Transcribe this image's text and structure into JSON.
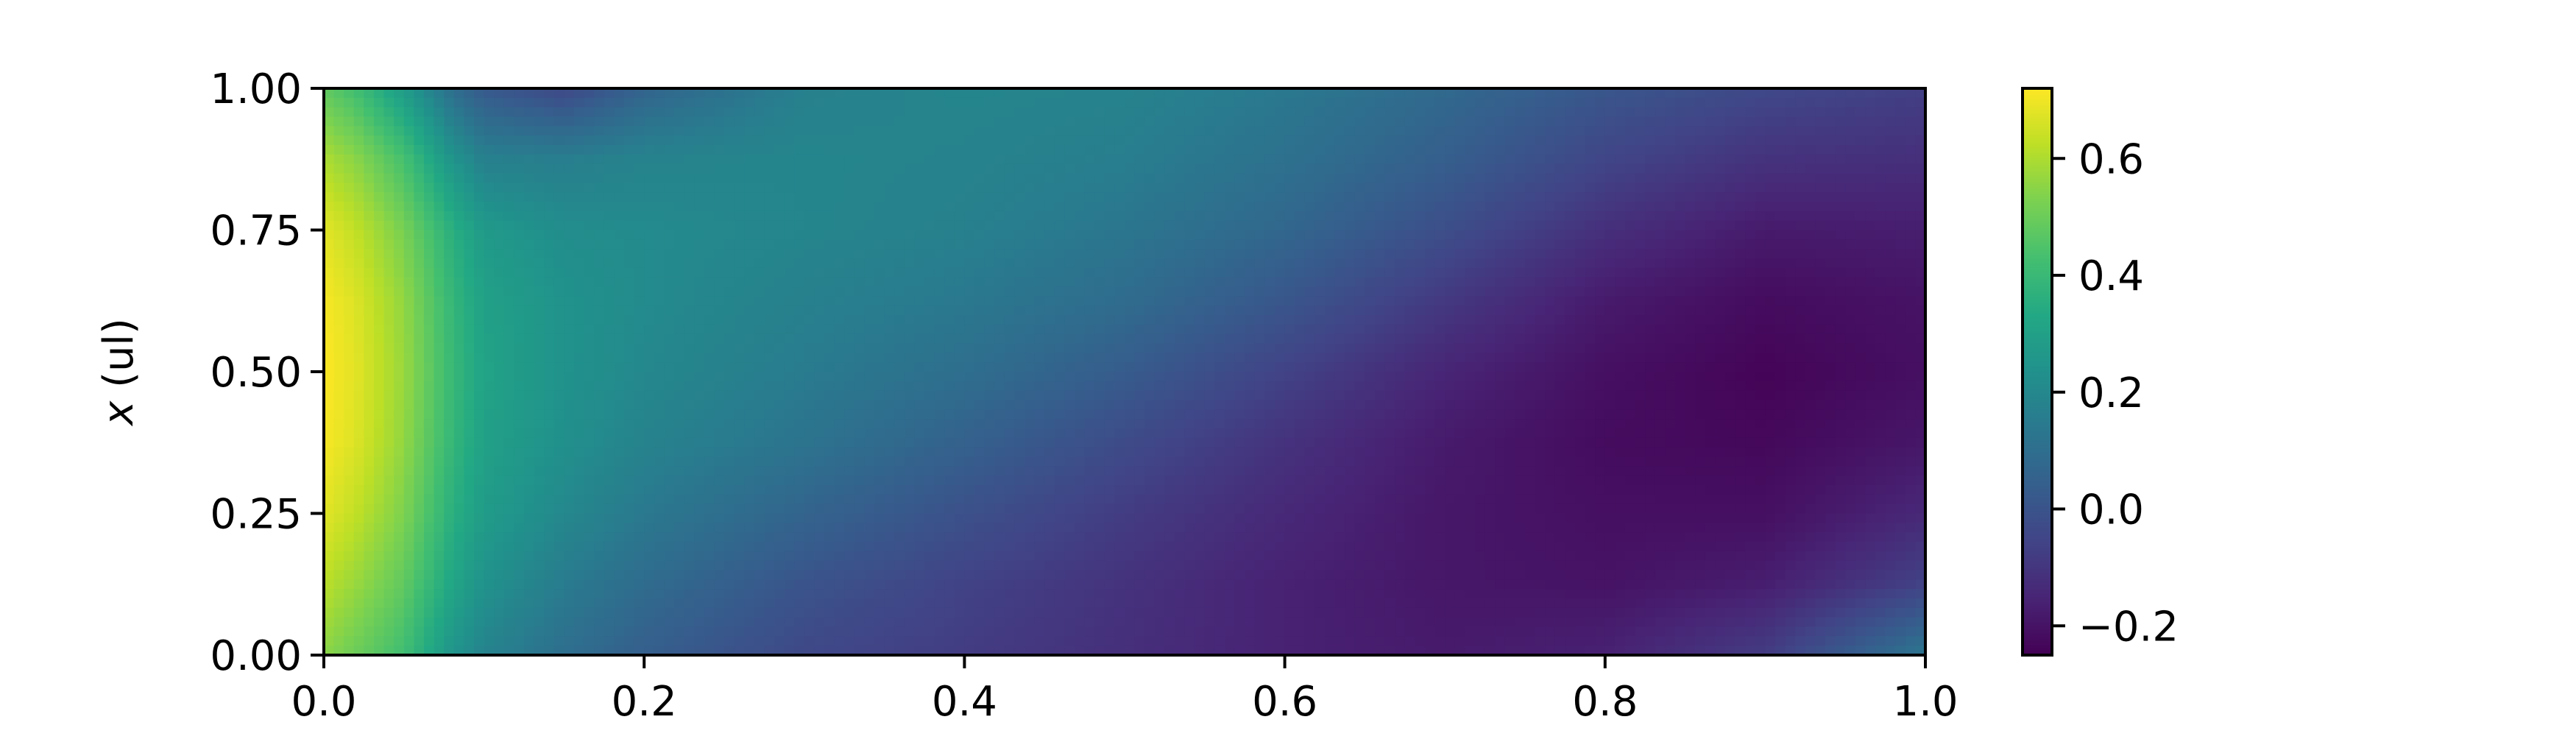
{
  "chart_data": {
    "type": "heatmap",
    "title": "",
    "xlabel": "",
    "ylabel": "x (ul)",
    "ylabel_parts": {
      "var": "x",
      "unit": " (ul)"
    },
    "xlim": [
      0.0,
      1.0
    ],
    "ylim": [
      0.0,
      1.0
    ],
    "x_ticks": [
      0.0,
      0.2,
      0.4,
      0.6,
      0.8,
      1.0
    ],
    "x_tick_labels": [
      "0.0",
      "0.2",
      "0.4",
      "0.6",
      "0.8",
      "1.0"
    ],
    "y_ticks": [
      0.0,
      0.25,
      0.5,
      0.75,
      1.0
    ],
    "y_tick_labels": [
      "0.00",
      "0.25",
      "0.50",
      "0.75",
      "1.00"
    ],
    "grid": false,
    "colormap": "viridis",
    "colorbar": {
      "range": [
        -0.25,
        0.72
      ],
      "ticks": [
        -0.2,
        0.0,
        0.2,
        0.4,
        0.6
      ],
      "tick_labels": [
        "−0.2",
        "0.0",
        "0.2",
        "0.4",
        "0.6"
      ],
      "location": "right"
    },
    "field": {
      "description": "2D scalar field over t in [0,1] (horizontal) and x in [0,1] (vertical), sampled on a coarse grid in data units",
      "t": [
        0.0,
        0.02,
        0.05,
        0.08,
        0.1,
        0.15,
        0.2,
        0.3,
        0.4,
        0.5,
        0.6,
        0.7,
        0.8,
        0.9,
        1.0
      ],
      "x": [
        0.0,
        0.125,
        0.25,
        0.375,
        0.5,
        0.625,
        0.75,
        0.875,
        1.0
      ],
      "values": [
        [
          0.55,
          0.5,
          0.42,
          0.25,
          0.18,
          0.1,
          0.04,
          -0.04,
          -0.08,
          -0.12,
          -0.16,
          -0.18,
          -0.16,
          -0.08,
          0.13
        ],
        [
          0.62,
          0.57,
          0.48,
          0.32,
          0.24,
          0.15,
          0.09,
          0.0,
          -0.06,
          -0.11,
          -0.16,
          -0.19,
          -0.2,
          -0.17,
          -0.06
        ],
        [
          0.68,
          0.63,
          0.53,
          0.36,
          0.28,
          0.2,
          0.14,
          0.06,
          -0.01,
          -0.08,
          -0.14,
          -0.19,
          -0.21,
          -0.21,
          -0.14
        ],
        [
          0.71,
          0.67,
          0.56,
          0.39,
          0.3,
          0.23,
          0.18,
          0.12,
          0.05,
          -0.03,
          -0.11,
          -0.18,
          -0.22,
          -0.23,
          -0.19
        ],
        [
          0.72,
          0.68,
          0.57,
          0.4,
          0.31,
          0.24,
          0.2,
          0.15,
          0.1,
          0.03,
          -0.06,
          -0.15,
          -0.21,
          -0.24,
          -0.21
        ],
        [
          0.71,
          0.67,
          0.56,
          0.39,
          0.3,
          0.24,
          0.21,
          0.17,
          0.14,
          0.09,
          0.01,
          -0.09,
          -0.18,
          -0.22,
          -0.2
        ],
        [
          0.68,
          0.63,
          0.52,
          0.36,
          0.27,
          0.22,
          0.21,
          0.19,
          0.17,
          0.13,
          0.07,
          -0.02,
          -0.12,
          -0.18,
          -0.17
        ],
        [
          0.6,
          0.55,
          0.43,
          0.25,
          0.17,
          0.16,
          0.18,
          0.19,
          0.18,
          0.16,
          0.11,
          0.04,
          -0.05,
          -0.11,
          -0.12
        ],
        [
          0.48,
          0.42,
          0.28,
          0.1,
          0.02,
          -0.04,
          0.06,
          0.17,
          0.19,
          0.18,
          0.14,
          0.08,
          0.01,
          -0.04,
          -0.07
        ]
      ]
    }
  }
}
